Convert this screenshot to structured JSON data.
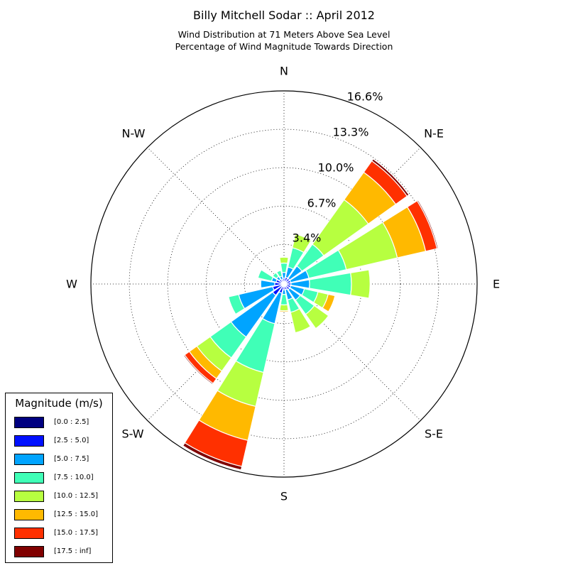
{
  "titles": {
    "main": "Billy Mitchell Sodar :: April 2012",
    "line1": "Wind Distribution at 71 Meters Above Sea Level",
    "line2": "Percentage of Wind Magnitude Towards Direction"
  },
  "compass": {
    "N": "N",
    "NE": "N-E",
    "E": "E",
    "SE": "S-E",
    "S": "S",
    "SW": "S-W",
    "W": "W",
    "NW": "N-W"
  },
  "radial_labels": [
    "3.4%",
    "6.7%",
    "10.0%",
    "13.3%",
    "16.6%"
  ],
  "legend": {
    "title": "Magnitude (m/s)",
    "entries": [
      {
        "label": "[0.0 : 2.5]",
        "color": "#000080"
      },
      {
        "label": "[2.5 : 5.0]",
        "color": "#0010ff"
      },
      {
        "label": "[5.0 : 7.5]",
        "color": "#00a4ff"
      },
      {
        "label": "[7.5 : 10.0]",
        "color": "#40ffb7"
      },
      {
        "label": "[10.0 : 12.5]",
        "color": "#b7ff40"
      },
      {
        "label": "[12.5 : 15.0]",
        "color": "#ffb900"
      },
      {
        "label": "[15.0 : 17.5]",
        "color": "#ff3000"
      },
      {
        "label": "[17.5 : inf]",
        "color": "#800000"
      }
    ]
  },
  "chart_data": {
    "type": "wind-rose",
    "title": "Billy Mitchell Sodar :: April 2012",
    "subtitle": "Wind Distribution at 71 Meters Above Sea Level / Percentage of Wind Magnitude Towards Direction",
    "radial_max": 16.6,
    "radial_ticks": [
      3.4,
      6.7,
      10.0,
      13.3,
      16.6
    ],
    "bin_labels": [
      "[0.0 : 2.5]",
      "[2.5 : 5.0]",
      "[5.0 : 7.5]",
      "[7.5 : 10.0]",
      "[10.0 : 12.5]",
      "[12.5 : 15.0]",
      "[15.0 : 17.5]",
      "[17.5 : inf]"
    ],
    "series_colors": [
      "#000080",
      "#0010ff",
      "#00a4ff",
      "#40ffb7",
      "#b7ff40",
      "#ffb900",
      "#ff3000",
      "#800000"
    ],
    "directions_deg": [
      0,
      22.5,
      45,
      67.5,
      90,
      112.5,
      135,
      157.5,
      180,
      202.5,
      225,
      247.5,
      270,
      292.5,
      315,
      337.5
    ],
    "cumulative_percent": [
      [
        0.1,
        0.5,
        1.0,
        1.8,
        2.3,
        2.3,
        2.3,
        2.3
      ],
      [
        0.1,
        0.6,
        1.5,
        3.2,
        4.4,
        4.4,
        4.4,
        4.4
      ],
      [
        0.1,
        0.6,
        1.9,
        4.2,
        8.9,
        11.8,
        13.0,
        13.2
      ],
      [
        0.1,
        0.6,
        2.2,
        5.5,
        10.0,
        12.5,
        13.5,
        13.6
      ],
      [
        0.1,
        0.6,
        2.2,
        5.8,
        7.4,
        7.4,
        7.4,
        7.4
      ],
      [
        0.1,
        0.6,
        1.8,
        3.0,
        3.9,
        4.5,
        4.5,
        4.5
      ],
      [
        0.1,
        0.6,
        1.7,
        3.2,
        4.7,
        4.7,
        4.7,
        4.7
      ],
      [
        0.1,
        0.5,
        1.4,
        2.5,
        4.3,
        4.3,
        4.3,
        4.3
      ],
      [
        0.1,
        0.5,
        0.9,
        1.8,
        2.3,
        2.4,
        2.4,
        2.4
      ],
      [
        0.1,
        0.8,
        3.5,
        7.8,
        10.8,
        13.8,
        16.1,
        16.4
      ],
      [
        0.1,
        1.2,
        5.6,
        7.8,
        9.2,
        10.0,
        10.5,
        10.6
      ],
      [
        0.1,
        1.0,
        4.0,
        4.9,
        4.9,
        4.9,
        4.9,
        4.9
      ],
      [
        0.1,
        0.8,
        2.0,
        2.0,
        2.0,
        2.0,
        2.0,
        2.0
      ],
      [
        0.1,
        0.7,
        1.1,
        2.3,
        2.3,
        2.3,
        2.3,
        2.3
      ],
      [
        0.1,
        0.5,
        0.8,
        1.2,
        1.2,
        1.2,
        1.2,
        1.2
      ],
      [
        0.1,
        0.4,
        0.7,
        1.2,
        1.2,
        1.2,
        1.2,
        1.2
      ]
    ],
    "grid": true
  }
}
